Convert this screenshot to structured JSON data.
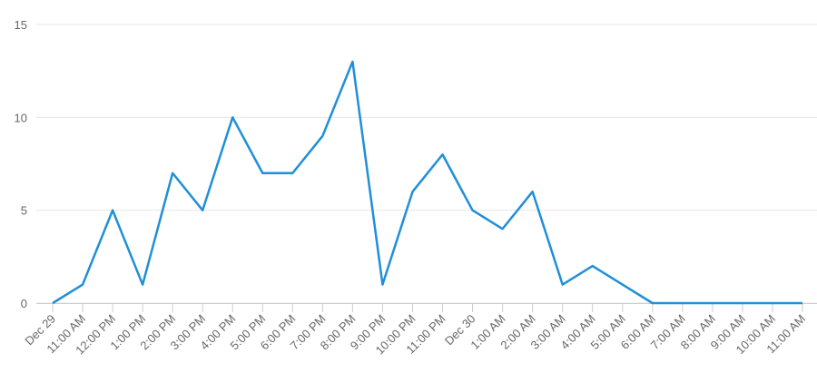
{
  "chart_data": {
    "type": "line",
    "categories": [
      "Dec 29",
      "11:00 AM",
      "12:00 PM",
      "1:00 PM",
      "2:00 PM",
      "3:00 PM",
      "4:00 PM",
      "5:00 PM",
      "6:00 PM",
      "7:00 PM",
      "8:00 PM",
      "9:00 PM",
      "10:00 PM",
      "11:00 PM",
      "Dec 30",
      "1:00 AM",
      "2:00 AM",
      "3:00 AM",
      "4:00 AM",
      "5:00 AM",
      "6:00 AM",
      "7:00 AM",
      "8:00 AM",
      "9:00 AM",
      "10:00 AM",
      "11:00 AM"
    ],
    "values": [
      0,
      1,
      5,
      1,
      7,
      5,
      10,
      7,
      7,
      9,
      13,
      1,
      6,
      8,
      5,
      4,
      6,
      1,
      2,
      1,
      0,
      0,
      0,
      0,
      0,
      0
    ],
    "color": "#1f8fd8",
    "ylim": [
      0,
      15
    ],
    "yticks": [
      0,
      5,
      10,
      15
    ],
    "grid": true
  }
}
